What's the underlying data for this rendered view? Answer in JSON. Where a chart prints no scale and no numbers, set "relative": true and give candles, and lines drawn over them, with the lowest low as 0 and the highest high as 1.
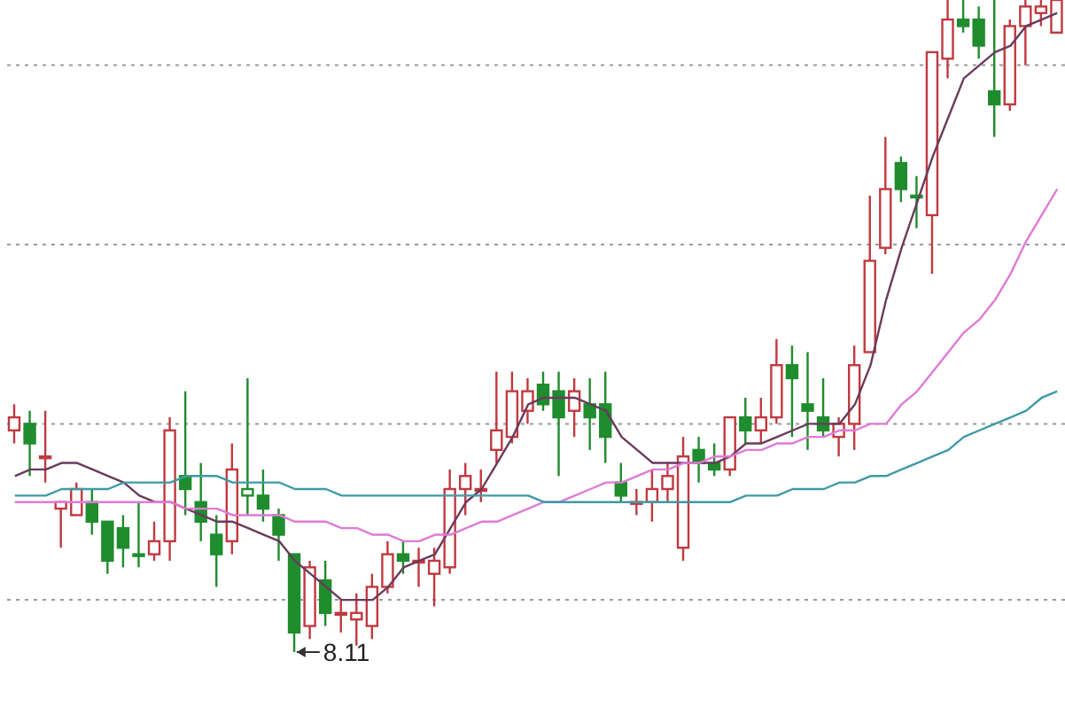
{
  "chart_data": {
    "type": "candlestick",
    "relative": true,
    "grid": "y",
    "categories": [
      null,
      null,
      null,
      null,
      null,
      null,
      null,
      null,
      null,
      null,
      null,
      null,
      null,
      null,
      null,
      null,
      null,
      null,
      null,
      null,
      null,
      null,
      null,
      null,
      null,
      null,
      null,
      null,
      null,
      null,
      null,
      null,
      null,
      null,
      null,
      null,
      null,
      null,
      null,
      null,
      null,
      null,
      null,
      null,
      null,
      null,
      null,
      null,
      null,
      null,
      null,
      null,
      null,
      null,
      null,
      null,
      null,
      null,
      null,
      null,
      null,
      null,
      null,
      null,
      null,
      null,
      null,
      null
    ],
    "ohlc": [
      [
        0.34,
        0.38,
        0.32,
        0.36
      ],
      [
        0.35,
        0.37,
        0.27,
        0.32
      ],
      [
        0.3,
        0.37,
        0.26,
        0.3
      ],
      [
        0.22,
        0.23,
        0.16,
        0.23
      ],
      [
        0.21,
        0.26,
        0.21,
        0.25
      ],
      [
        0.23,
        0.25,
        0.18,
        0.2
      ],
      [
        0.2,
        0.2,
        0.12,
        0.14
      ],
      [
        0.19,
        0.21,
        0.13,
        0.16
      ],
      [
        0.15,
        0.23,
        0.13,
        0.15
      ],
      [
        0.15,
        0.2,
        0.14,
        0.17
      ],
      [
        0.17,
        0.36,
        0.14,
        0.34
      ],
      [
        0.27,
        0.4,
        0.21,
        0.25
      ],
      [
        0.23,
        0.29,
        0.17,
        0.2
      ],
      [
        0.18,
        0.21,
        0.1,
        0.15
      ],
      [
        0.17,
        0.32,
        0.15,
        0.28
      ],
      [
        0.24,
        0.42,
        0.21,
        0.25
      ],
      [
        0.24,
        0.28,
        0.2,
        0.22
      ],
      [
        0.21,
        0.22,
        0.14,
        0.18
      ],
      [
        0.15,
        0.15,
        0,
        0.03
      ],
      [
        0.04,
        0.14,
        0.02,
        0.13
      ],
      [
        0.11,
        0.14,
        0.04,
        0.06
      ],
      [
        0.06,
        0.08,
        0.03,
        0.06
      ],
      [
        0.05,
        0.09,
        0.01,
        0.06
      ],
      [
        0.04,
        0.12,
        0.02,
        0.1
      ],
      [
        0.1,
        0.17,
        0.09,
        0.15
      ],
      [
        0.15,
        0.17,
        0.12,
        0.14
      ],
      [
        0.14,
        0.16,
        0.1,
        0.14
      ],
      [
        0.12,
        0.16,
        0.07,
        0.14
      ],
      [
        0.13,
        0.28,
        0.12,
        0.25
      ],
      [
        0.25,
        0.29,
        0.21,
        0.27
      ],
      [
        0.25,
        0.28,
        0.23,
        0.25
      ],
      [
        0.31,
        0.43,
        0.29,
        0.34
      ],
      [
        0.33,
        0.43,
        0.32,
        0.4
      ],
      [
        0.37,
        0.42,
        0.35,
        0.4
      ],
      [
        0.41,
        0.43,
        0.37,
        0.38
      ],
      [
        0.4,
        0.43,
        0.27,
        0.36
      ],
      [
        0.37,
        0.42,
        0.33,
        0.4
      ],
      [
        0.38,
        0.42,
        0.31,
        0.36
      ],
      [
        0.38,
        0.43,
        0.29,
        0.33
      ],
      [
        0.26,
        0.29,
        0.23,
        0.24
      ],
      [
        0.23,
        0.25,
        0.21,
        0.23
      ],
      [
        0.23,
        0.28,
        0.2,
        0.25
      ],
      [
        0.25,
        0.29,
        0.23,
        0.27
      ],
      [
        0.16,
        0.33,
        0.14,
        0.3
      ],
      [
        0.31,
        0.33,
        0.26,
        0.29
      ],
      [
        0.29,
        0.32,
        0.27,
        0.28
      ],
      [
        0.28,
        0.36,
        0.27,
        0.36
      ],
      [
        0.36,
        0.39,
        0.32,
        0.34
      ],
      [
        0.34,
        0.39,
        0.32,
        0.36
      ],
      [
        0.36,
        0.48,
        0.35,
        0.44
      ],
      [
        0.44,
        0.47,
        0.33,
        0.42
      ],
      [
        0.38,
        0.46,
        0.31,
        0.37
      ],
      [
        0.36,
        0.42,
        0.33,
        0.34
      ],
      [
        0.33,
        0.36,
        0.3,
        0.35
      ],
      [
        0.35,
        0.47,
        0.31,
        0.44
      ],
      [
        0.46,
        0.7,
        0.46,
        0.6
      ],
      [
        0.62,
        0.79,
        0.61,
        0.71
      ],
      [
        0.75,
        0.76,
        0.69,
        0.71
      ],
      [
        0.7,
        0.73,
        0.65,
        0.7
      ],
      [
        0.67,
        0.92,
        0.58,
        0.92
      ],
      [
        0.91,
        1.0,
        0.88,
        0.97
      ],
      [
        0.97,
        1.0,
        0.95,
        0.96
      ],
      [
        0.97,
        0.99,
        0.91,
        0.93
      ],
      [
        0.86,
        1.0,
        0.79,
        0.84
      ],
      [
        0.84,
        0.97,
        0.83,
        0.96
      ],
      [
        0.96,
        1.0,
        0.9,
        0.99
      ],
      [
        0.98,
        1.0,
        0.96,
        0.99
      ],
      [
        0.95,
        1.0,
        0.95,
        1.0
      ]
    ],
    "colors": [
      "#c0393f",
      "#1f8c2e",
      "#c0393f",
      "#c0393f",
      "#c0393f",
      "#1f8c2e",
      "#1f8c2e",
      "#1f8c2e",
      "#1f8c2e",
      "#c0393f",
      "#c0393f",
      "#1f8c2e",
      "#1f8c2e",
      "#1f8c2e",
      "#c0393f",
      "#1f8c2e",
      "#1f8c2e",
      "#1f8c2e",
      "#1f8c2e",
      "#c0393f",
      "#1f8c2e",
      "#c0393f",
      "#c0393f",
      "#c0393f",
      "#c0393f",
      "#1f8c2e",
      "#c0393f",
      "#c0393f",
      "#c0393f",
      "#c0393f",
      "#c0393f",
      "#c0393f",
      "#c0393f",
      "#c0393f",
      "#1f8c2e",
      "#1f8c2e",
      "#c0393f",
      "#1f8c2e",
      "#1f8c2e",
      "#1f8c2e",
      "#c0393f",
      "#c0393f",
      "#c0393f",
      "#c0393f",
      "#1f8c2e",
      "#1f8c2e",
      "#c0393f",
      "#1f8c2e",
      "#c0393f",
      "#c0393f",
      "#1f8c2e",
      "#1f8c2e",
      "#1f8c2e",
      "#c0393f",
      "#c0393f",
      "#c0393f",
      "#c0393f",
      "#1f8c2e",
      "#1f8c2e",
      "#c0393f",
      "#c0393f",
      "#1f8c2e",
      "#1f8c2e",
      "#1f8c2e",
      "#c0393f",
      "#c0393f",
      "#c0393f",
      "#c0393f"
    ],
    "series": [
      {
        "type": "line",
        "color": "#6b3a5c",
        "values": [
          0.27,
          0.28,
          0.28,
          0.29,
          0.29,
          0.28,
          0.27,
          0.26,
          0.24,
          0.23,
          0.23,
          0.22,
          0.21,
          0.2,
          0.2,
          0.19,
          0.18,
          0.17,
          0.14,
          0.12,
          0.1,
          0.08,
          0.08,
          0.08,
          0.1,
          0.13,
          0.14,
          0.15,
          0.19,
          0.23,
          0.25,
          0.29,
          0.33,
          0.38,
          0.39,
          0.39,
          0.39,
          0.38,
          0.37,
          0.33,
          0.31,
          0.29,
          0.29,
          0.29,
          0.29,
          0.29,
          0.3,
          0.32,
          0.32,
          0.33,
          0.34,
          0.35,
          0.35,
          0.35,
          0.38,
          0.44,
          0.54,
          0.62,
          0.69,
          0.76,
          0.82,
          0.88,
          0.9,
          0.92,
          0.93,
          0.96,
          0.97,
          0.98
        ]
      },
      {
        "type": "line",
        "color": "#e07ad6",
        "values": [
          0.23,
          0.23,
          0.23,
          0.23,
          0.23,
          0.23,
          0.23,
          0.23,
          0.23,
          0.23,
          0.23,
          0.22,
          0.22,
          0.22,
          0.21,
          0.21,
          0.21,
          0.21,
          0.2,
          0.2,
          0.2,
          0.19,
          0.19,
          0.18,
          0.18,
          0.17,
          0.17,
          0.18,
          0.18,
          0.19,
          0.2,
          0.2,
          0.21,
          0.22,
          0.23,
          0.23,
          0.24,
          0.25,
          0.26,
          0.26,
          0.27,
          0.28,
          0.28,
          0.29,
          0.29,
          0.3,
          0.3,
          0.31,
          0.31,
          0.32,
          0.32,
          0.33,
          0.33,
          0.34,
          0.34,
          0.35,
          0.35,
          0.38,
          0.4,
          0.43,
          0.46,
          0.49,
          0.51,
          0.54,
          0.58,
          0.63,
          0.67,
          0.71
        ]
      },
      {
        "type": "line",
        "color": "#3f9aa6",
        "values": [
          0.24,
          0.24,
          0.24,
          0.25,
          0.25,
          0.25,
          0.25,
          0.26,
          0.26,
          0.26,
          0.26,
          0.27,
          0.27,
          0.27,
          0.26,
          0.26,
          0.26,
          0.26,
          0.25,
          0.25,
          0.25,
          0.24,
          0.24,
          0.24,
          0.24,
          0.24,
          0.24,
          0.24,
          0.24,
          0.24,
          0.24,
          0.24,
          0.24,
          0.24,
          0.23,
          0.23,
          0.23,
          0.23,
          0.23,
          0.23,
          0.23,
          0.23,
          0.23,
          0.23,
          0.23,
          0.23,
          0.23,
          0.24,
          0.24,
          0.24,
          0.25,
          0.25,
          0.25,
          0.26,
          0.26,
          0.27,
          0.27,
          0.28,
          0.29,
          0.3,
          0.31,
          0.33,
          0.34,
          0.35,
          0.36,
          0.37,
          0.39,
          0.4
        ]
      }
    ],
    "annotations": [
      "8.11"
    ]
  }
}
